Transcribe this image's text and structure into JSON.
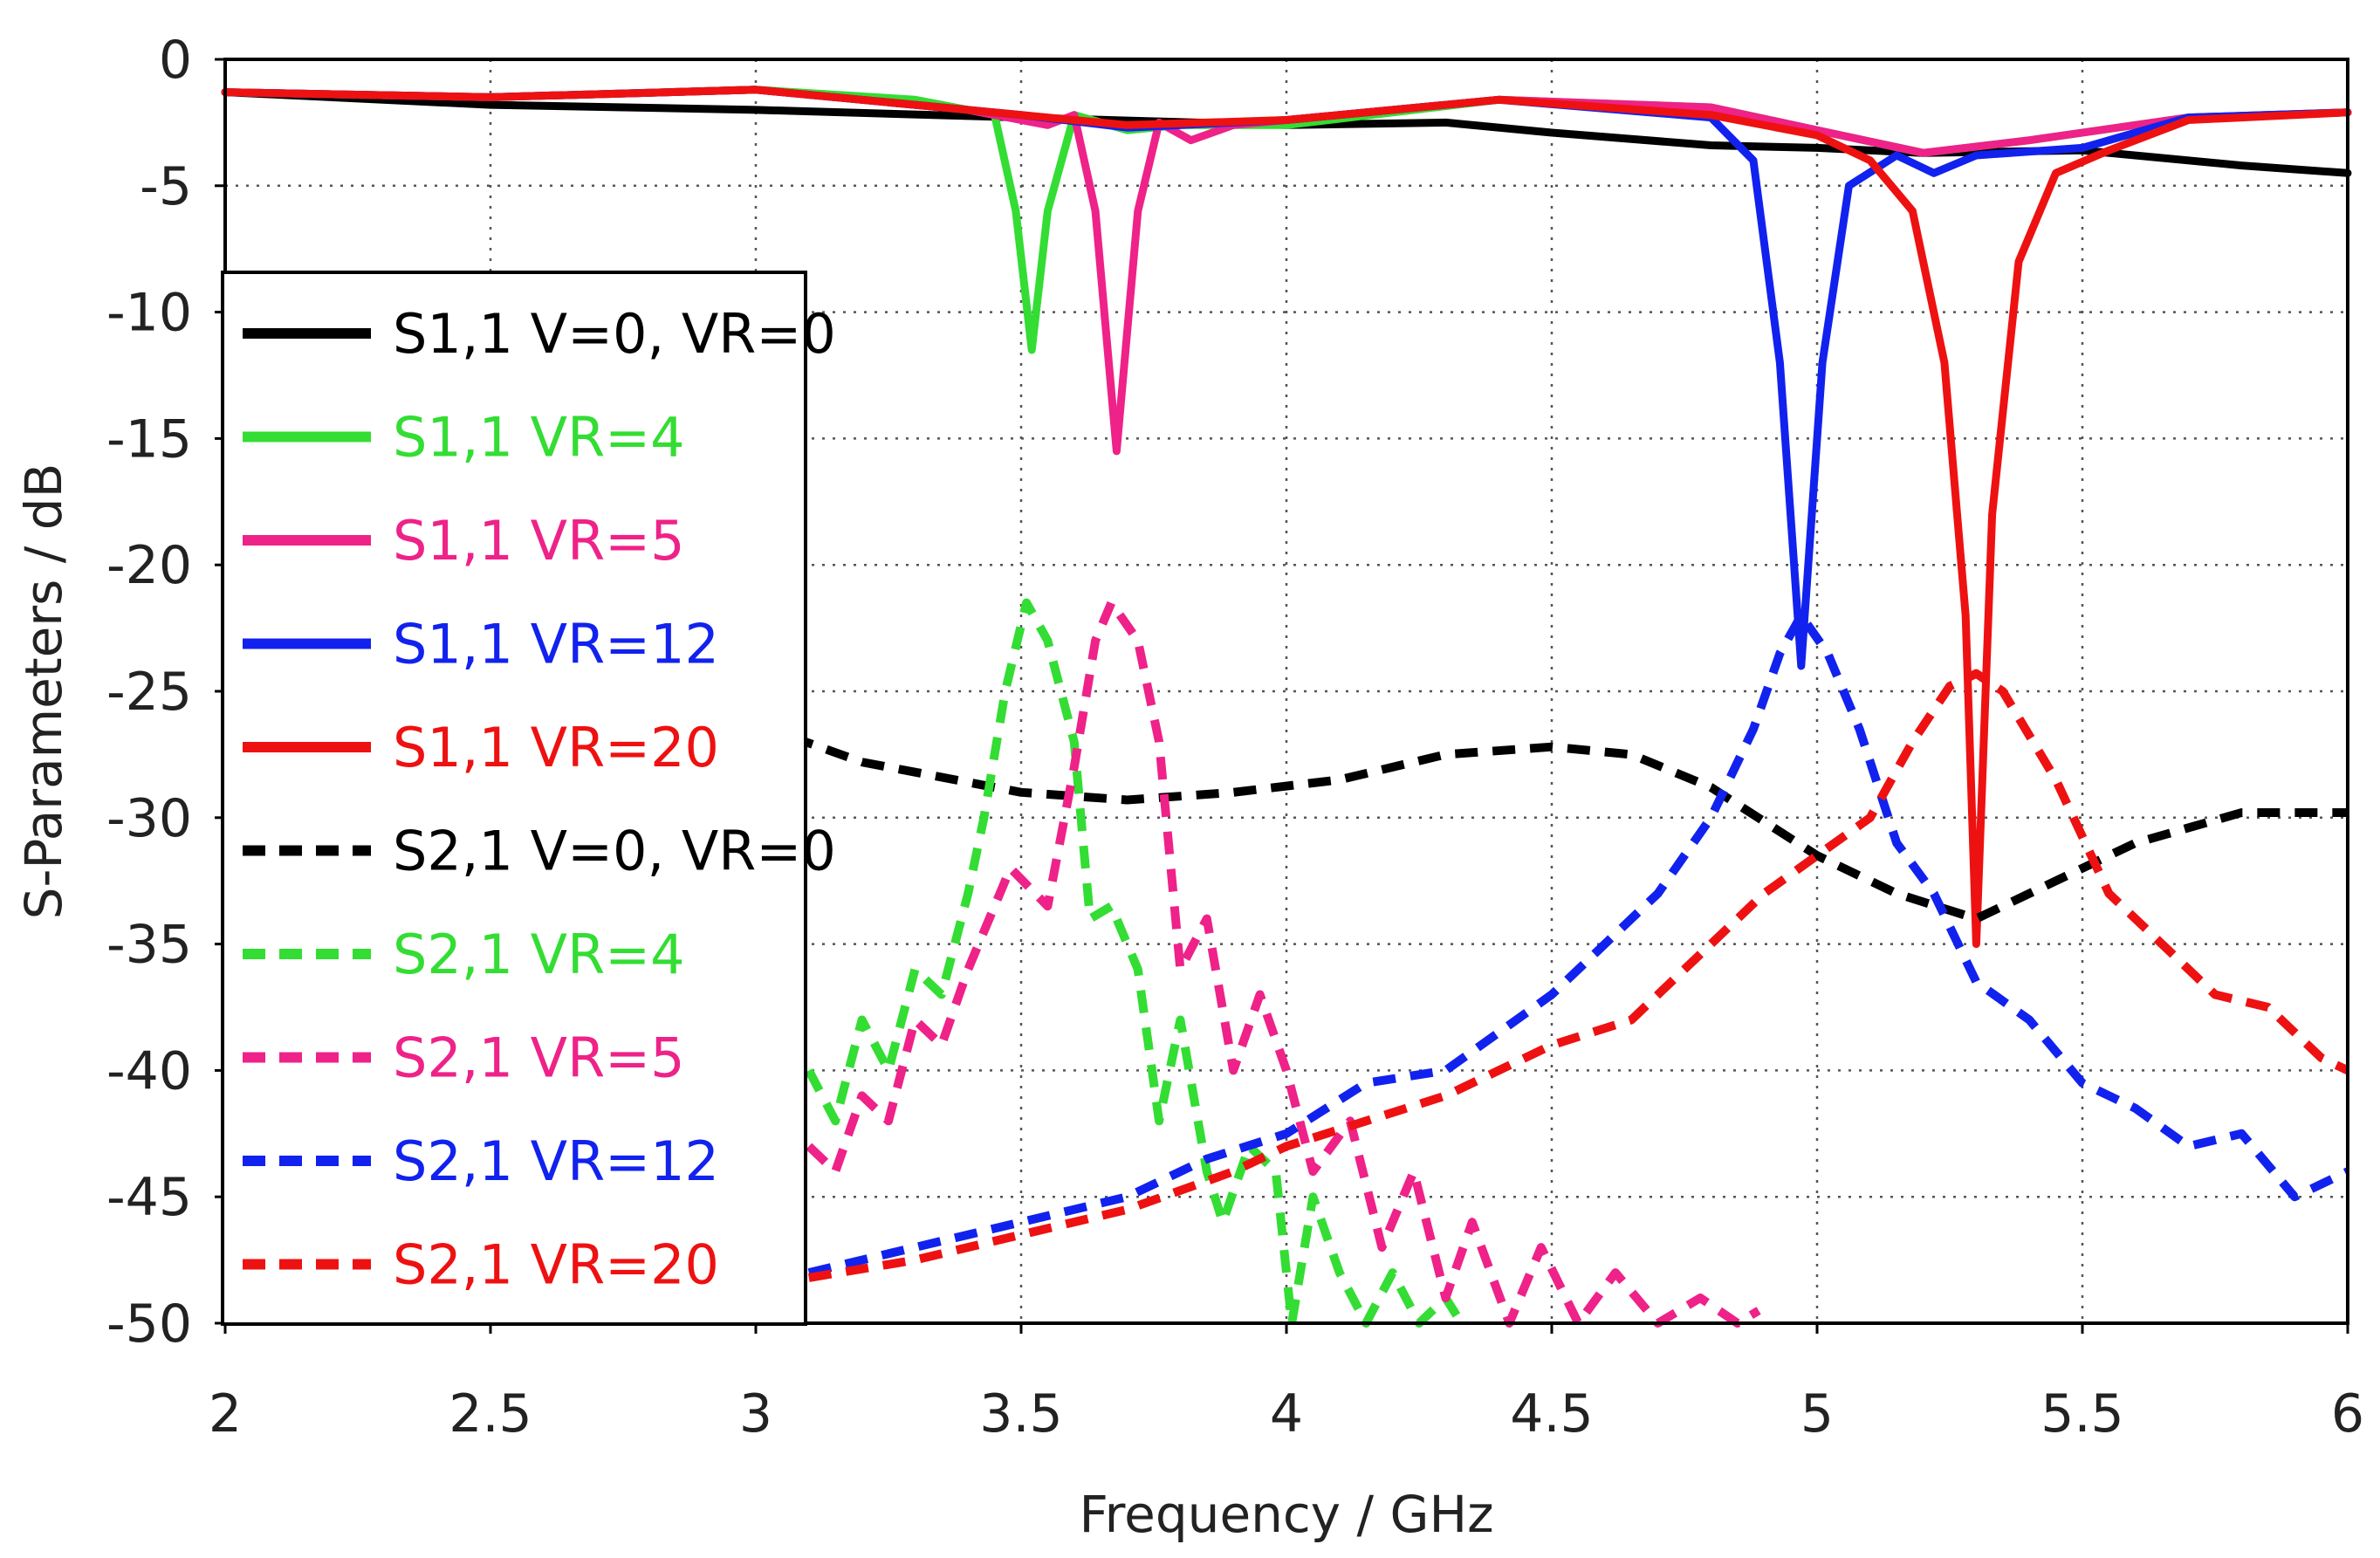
{
  "chart_data": {
    "type": "line",
    "xlabel": "Frequency / GHz",
    "ylabel": "S-Parameters / dB",
    "xlim": [
      2,
      6
    ],
    "ylim": [
      -50,
      0
    ],
    "xticks": [
      "2",
      "2.5",
      "3",
      "3.5",
      "4",
      "4.5",
      "5",
      "5.5",
      "6"
    ],
    "yticks": [
      "0",
      "-5",
      "-10",
      "-15",
      "-20",
      "-25",
      "-30",
      "-35",
      "-40",
      "-45",
      "-50"
    ],
    "xtick_values": [
      2,
      2.5,
      3,
      3.5,
      4,
      4.5,
      5,
      5.5,
      6
    ],
    "ytick_values": [
      0,
      -5,
      -10,
      -15,
      -20,
      -25,
      -30,
      -35,
      -40,
      -45,
      -50
    ],
    "grid": true,
    "legend_position": "left",
    "series": [
      {
        "name": "S1,1 V=0, VR=0",
        "color": "#000000",
        "dash": false,
        "points": [
          [
            2,
            -1.3
          ],
          [
            2.5,
            -1.8
          ],
          [
            3,
            -2.0
          ],
          [
            3.5,
            -2.3
          ],
          [
            4,
            -2.6
          ],
          [
            4.3,
            -2.5
          ],
          [
            4.5,
            -2.9
          ],
          [
            4.8,
            -3.4
          ],
          [
            5,
            -3.5
          ],
          [
            5.2,
            -3.7
          ],
          [
            5.5,
            -3.6
          ],
          [
            5.8,
            -4.2
          ],
          [
            6,
            -4.5
          ]
        ]
      },
      {
        "name": "S1,1 VR=4",
        "color": "#33dd33",
        "dash": false,
        "points": [
          [
            2,
            -1.3
          ],
          [
            2.5,
            -1.5
          ],
          [
            3,
            -1.2
          ],
          [
            3.3,
            -1.6
          ],
          [
            3.45,
            -2.2
          ],
          [
            3.49,
            -6
          ],
          [
            3.52,
            -11.5
          ],
          [
            3.55,
            -6
          ],
          [
            3.6,
            -2.2
          ],
          [
            3.7,
            -2.8
          ],
          [
            3.8,
            -2.6
          ],
          [
            4,
            -2.6
          ],
          [
            4.4,
            -1.6
          ],
          [
            4.8,
            -1.9
          ],
          [
            5,
            -2.8
          ],
          [
            5.2,
            -3.7
          ],
          [
            5.4,
            -3.2
          ],
          [
            5.7,
            -2.3
          ],
          [
            6,
            -2.1
          ]
        ]
      },
      {
        "name": "S1,1 VR=5",
        "color": "#ee2288",
        "dash": false,
        "points": [
          [
            2,
            -1.3
          ],
          [
            2.5,
            -1.5
          ],
          [
            3,
            -1.2
          ],
          [
            3.4,
            -2.0
          ],
          [
            3.55,
            -2.6
          ],
          [
            3.6,
            -2.2
          ],
          [
            3.64,
            -6
          ],
          [
            3.68,
            -15.5
          ],
          [
            3.72,
            -6
          ],
          [
            3.76,
            -2.5
          ],
          [
            3.82,
            -3.2
          ],
          [
            3.9,
            -2.6
          ],
          [
            4.4,
            -1.6
          ],
          [
            4.8,
            -1.9
          ],
          [
            5,
            -2.8
          ],
          [
            5.2,
            -3.7
          ],
          [
            5.4,
            -3.2
          ],
          [
            5.7,
            -2.3
          ],
          [
            6,
            -2.1
          ]
        ]
      },
      {
        "name": "S1,1 VR=12",
        "color": "#1122ee",
        "dash": false,
        "points": [
          [
            2,
            -1.3
          ],
          [
            2.5,
            -1.5
          ],
          [
            3,
            -1.2
          ],
          [
            3.5,
            -2.2
          ],
          [
            3.7,
            -2.7
          ],
          [
            4,
            -2.4
          ],
          [
            4.4,
            -1.6
          ],
          [
            4.8,
            -2.3
          ],
          [
            4.88,
            -4
          ],
          [
            4.93,
            -12
          ],
          [
            4.97,
            -24
          ],
          [
            5.01,
            -12
          ],
          [
            5.06,
            -5
          ],
          [
            5.15,
            -3.8
          ],
          [
            5.22,
            -4.5
          ],
          [
            5.3,
            -3.8
          ],
          [
            5.5,
            -3.5
          ],
          [
            5.7,
            -2.3
          ],
          [
            6,
            -2.1
          ]
        ]
      },
      {
        "name": "S1,1 VR=20",
        "color": "#ee1111",
        "dash": false,
        "points": [
          [
            2,
            -1.3
          ],
          [
            2.5,
            -1.5
          ],
          [
            3,
            -1.2
          ],
          [
            3.5,
            -2.2
          ],
          [
            3.7,
            -2.6
          ],
          [
            4,
            -2.4
          ],
          [
            4.4,
            -1.6
          ],
          [
            4.8,
            -2.2
          ],
          [
            5,
            -3.0
          ],
          [
            5.1,
            -4.0
          ],
          [
            5.18,
            -6
          ],
          [
            5.24,
            -12
          ],
          [
            5.28,
            -22
          ],
          [
            5.3,
            -35
          ],
          [
            5.33,
            -18
          ],
          [
            5.38,
            -8
          ],
          [
            5.45,
            -4.5
          ],
          [
            5.55,
            -3.6
          ],
          [
            5.7,
            -2.4
          ],
          [
            6,
            -2.1
          ]
        ]
      },
      {
        "name": "S2,1 V=0, VR=0",
        "color": "#000000",
        "dash": true,
        "points": [
          [
            3,
            -26.3
          ],
          [
            3.2,
            -27.8
          ],
          [
            3.5,
            -29.0
          ],
          [
            3.7,
            -29.3
          ],
          [
            3.9,
            -29.0
          ],
          [
            4.1,
            -28.5
          ],
          [
            4.3,
            -27.5
          ],
          [
            4.5,
            -27.2
          ],
          [
            4.65,
            -27.5
          ],
          [
            4.8,
            -28.8
          ],
          [
            5,
            -31.5
          ],
          [
            5.15,
            -33.0
          ],
          [
            5.3,
            -34.0
          ],
          [
            5.4,
            -33.0
          ],
          [
            5.6,
            -31.0
          ],
          [
            5.8,
            -29.8
          ],
          [
            6,
            -29.8
          ]
        ]
      },
      {
        "name": "S2,1 VR=4",
        "color": "#33dd33",
        "dash": true,
        "points": [
          [
            3.1,
            -40
          ],
          [
            3.15,
            -42
          ],
          [
            3.2,
            -38
          ],
          [
            3.25,
            -40
          ],
          [
            3.3,
            -36
          ],
          [
            3.35,
            -37
          ],
          [
            3.4,
            -33
          ],
          [
            3.43,
            -30
          ],
          [
            3.47,
            -25
          ],
          [
            3.51,
            -21.5
          ],
          [
            3.55,
            -23
          ],
          [
            3.6,
            -27
          ],
          [
            3.63,
            -34
          ],
          [
            3.67,
            -33.5
          ],
          [
            3.72,
            -36
          ],
          [
            3.76,
            -42
          ],
          [
            3.8,
            -38
          ],
          [
            3.85,
            -44
          ],
          [
            3.88,
            -46
          ],
          [
            3.93,
            -43
          ],
          [
            3.98,
            -44
          ],
          [
            4.01,
            -50
          ],
          [
            4.05,
            -45
          ],
          [
            4.1,
            -48
          ],
          [
            4.15,
            -50
          ],
          [
            4.2,
            -48
          ],
          [
            4.25,
            -50
          ],
          [
            4.3,
            -49
          ],
          [
            4.33,
            -50
          ]
        ]
      },
      {
        "name": "S2,1 VR=5",
        "color": "#ee2288",
        "dash": true,
        "points": [
          [
            3.1,
            -43
          ],
          [
            3.15,
            -44
          ],
          [
            3.2,
            -41
          ],
          [
            3.25,
            -42
          ],
          [
            3.3,
            -38
          ],
          [
            3.35,
            -39
          ],
          [
            3.4,
            -36
          ],
          [
            3.48,
            -32
          ],
          [
            3.55,
            -33.5
          ],
          [
            3.6,
            -28
          ],
          [
            3.64,
            -23
          ],
          [
            3.67,
            -21.5
          ],
          [
            3.72,
            -23
          ],
          [
            3.76,
            -27
          ],
          [
            3.8,
            -36
          ],
          [
            3.85,
            -34
          ],
          [
            3.9,
            -40
          ],
          [
            3.95,
            -37
          ],
          [
            4.0,
            -40
          ],
          [
            4.05,
            -44
          ],
          [
            4.12,
            -42
          ],
          [
            4.18,
            -47
          ],
          [
            4.24,
            -44
          ],
          [
            4.3,
            -49
          ],
          [
            4.35,
            -46
          ],
          [
            4.42,
            -50
          ],
          [
            4.48,
            -47
          ],
          [
            4.55,
            -50
          ],
          [
            4.62,
            -48
          ],
          [
            4.7,
            -50
          ],
          [
            4.78,
            -49
          ],
          [
            4.85,
            -50
          ],
          [
            4.89,
            -49.5
          ]
        ]
      },
      {
        "name": "S2,1 VR=12",
        "color": "#1122ee",
        "dash": true,
        "points": [
          [
            3.1,
            -48
          ],
          [
            3.3,
            -47
          ],
          [
            3.5,
            -46
          ],
          [
            3.7,
            -45
          ],
          [
            3.85,
            -43.5
          ],
          [
            4.0,
            -42.5
          ],
          [
            4.15,
            -40.5
          ],
          [
            4.3,
            -40
          ],
          [
            4.4,
            -38.5
          ],
          [
            4.5,
            -37
          ],
          [
            4.6,
            -35
          ],
          [
            4.7,
            -33
          ],
          [
            4.8,
            -30
          ],
          [
            4.88,
            -26.5
          ],
          [
            4.93,
            -23.5
          ],
          [
            4.97,
            -22
          ],
          [
            5.02,
            -23.5
          ],
          [
            5.08,
            -26.5
          ],
          [
            5.15,
            -31
          ],
          [
            5.22,
            -33
          ],
          [
            5.3,
            -36.5
          ],
          [
            5.4,
            -38
          ],
          [
            5.5,
            -40.5
          ],
          [
            5.6,
            -41.5
          ],
          [
            5.7,
            -43
          ],
          [
            5.8,
            -42.5
          ],
          [
            5.9,
            -45
          ],
          [
            6,
            -44
          ]
        ]
      },
      {
        "name": "S2,1 VR=20",
        "color": "#ee1111",
        "dash": true,
        "points": [
          [
            3.1,
            -48.2
          ],
          [
            3.3,
            -47.5
          ],
          [
            3.5,
            -46.5
          ],
          [
            3.7,
            -45.5
          ],
          [
            3.9,
            -44
          ],
          [
            4.0,
            -43
          ],
          [
            4.15,
            -42
          ],
          [
            4.3,
            -41
          ],
          [
            4.5,
            -39
          ],
          [
            4.65,
            -38
          ],
          [
            4.8,
            -35
          ],
          [
            4.9,
            -33
          ],
          [
            5.0,
            -31.5
          ],
          [
            5.1,
            -30
          ],
          [
            5.18,
            -27
          ],
          [
            5.25,
            -24.8
          ],
          [
            5.3,
            -24.3
          ],
          [
            5.35,
            -25
          ],
          [
            5.45,
            -28.5
          ],
          [
            5.55,
            -33
          ],
          [
            5.65,
            -35
          ],
          [
            5.75,
            -37
          ],
          [
            5.85,
            -37.5
          ],
          [
            5.95,
            -39.5
          ],
          [
            6,
            -40
          ]
        ]
      }
    ]
  }
}
